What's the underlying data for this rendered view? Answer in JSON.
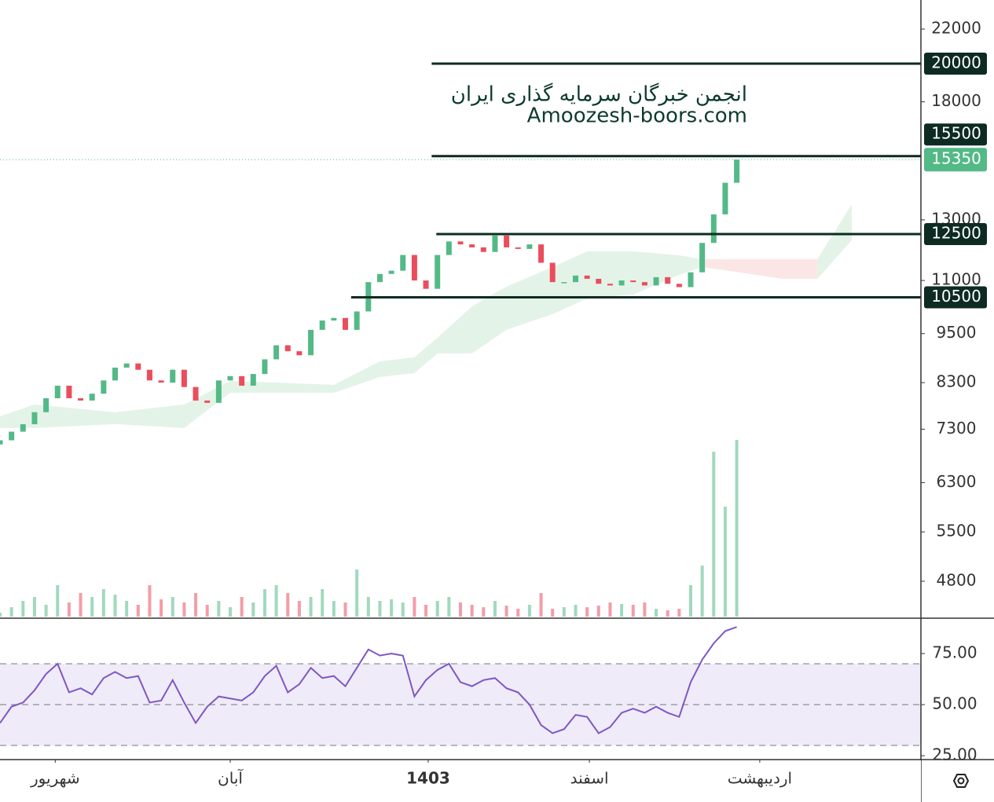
{
  "chart_data": {
    "type": "candlestick",
    "log_scale": true,
    "xlim": [
      0,
      80
    ],
    "ylim": [
      4354,
      23835
    ],
    "yticks": [
      22000,
      18000,
      13000,
      11000,
      9500,
      8300,
      7300,
      6300,
      5500,
      4800
    ],
    "xticks": [
      {
        "value": 4.8,
        "label": "شهریور"
      },
      {
        "value": 20,
        "label": "آبان"
      },
      {
        "value": 37.2,
        "label": "1403"
      },
      {
        "value": 51.2,
        "label": "اسفند"
      },
      {
        "value": 66,
        "label": "اردیبهشت"
      }
    ],
    "watermark": [
      "انجمن خبرگان سرمایه گذاری ایران",
      "Amoozesh-boors.com"
    ],
    "up_color": "#53b987",
    "down_color": "#eb4d5c",
    "series": [
      {
        "open": [
          7000,
          7080,
          7250,
          7400,
          7650,
          7950,
          8230,
          7950,
          7900,
          8050,
          8350,
          8650,
          8750,
          8600,
          8350,
          8300,
          8600,
          8200,
          7900,
          7850,
          8350,
          8450,
          8230,
          8500,
          8850,
          9200,
          9050,
          8950,
          9600,
          9850,
          9920,
          9600,
          10100,
          10950,
          11200,
          11300,
          11800,
          11000,
          10750,
          11800,
          12250,
          12150,
          12050,
          11900,
          12450,
          12050,
          12000,
          12150,
          11550,
          10950,
          10950,
          11150,
          11050,
          10900,
          10850,
          11000,
          10950,
          10850,
          11100,
          10900,
          10800,
          11250,
          12200,
          13200,
          14400
        ],
        "close": [
          7080,
          7250,
          7400,
          7650,
          7950,
          8230,
          7950,
          7900,
          8050,
          8350,
          8650,
          8750,
          8600,
          8350,
          8300,
          8600,
          8200,
          7900,
          7850,
          8350,
          8450,
          8230,
          8500,
          8850,
          9200,
          9050,
          8950,
          9600,
          9850,
          9920,
          9600,
          10100,
          10950,
          11200,
          11300,
          11800,
          11000,
          10750,
          11800,
          12250,
          12150,
          12050,
          11900,
          12450,
          12050,
          12000,
          12150,
          11550,
          10950,
          10950,
          11150,
          11050,
          10900,
          10850,
          11000,
          10950,
          10850,
          11100,
          10900,
          10800,
          11250,
          12200,
          13200,
          14400,
          15350
        ],
        "volume": [
          5,
          12,
          20,
          25,
          15,
          40,
          18,
          30,
          25,
          35,
          28,
          20,
          15,
          40,
          22,
          25,
          18,
          30,
          15,
          20,
          12,
          25,
          18,
          35,
          40,
          30,
          20,
          25,
          35,
          20,
          18,
          60,
          25,
          20,
          22,
          18,
          25,
          15,
          20,
          25,
          18,
          15,
          12,
          20,
          14,
          10,
          15,
          30,
          10,
          12,
          15,
          12,
          14,
          18,
          16,
          15,
          18,
          10,
          8,
          10,
          40,
          65,
          210,
          140,
          225
        ]
      }
    ],
    "volume_ylim": [
      0,
      250
    ],
    "clouds": [
      {
        "color": "#e4f3e8",
        "x": [
          0,
          3,
          10,
          16,
          20,
          29,
          33,
          36,
          38,
          41,
          44,
          48,
          51,
          55,
          59,
          61
        ],
        "upper": [
          7563,
          7815,
          7647,
          7815,
          8339,
          8250,
          8802,
          8899,
          9394,
          10243,
          10815,
          11416,
          11919,
          11919,
          11792,
          11664
        ],
        "lower": [
          7323,
          7323,
          7403,
          7323,
          8071,
          8071,
          8428,
          8521,
          8998,
          8998,
          9601,
          10025,
          10466,
          10582,
          11169,
          11416
        ]
      },
      {
        "color": "#fbe6e6",
        "x": [
          61,
          68,
          71
        ],
        "upper": [
          11664,
          11664,
          11664
        ],
        "lower": [
          11416,
          11050,
          11050
        ]
      },
      {
        "color": "#e4f3e8",
        "x": [
          71,
          74
        ],
        "upper": [
          11664,
          13574
        ],
        "lower": [
          11050,
          12300
        ]
      }
    ],
    "levels": [
      {
        "value": 20000,
        "from": 37.5
      },
      {
        "value": 15500,
        "from": 37.5
      },
      {
        "value": 12500,
        "from": 37.9
      },
      {
        "value": 10500,
        "from": 30.5
      }
    ],
    "last_price": 15350,
    "rsi": {
      "ylim": [
        23.1,
        92.3
      ],
      "yticks": [
        {
          "value": 75,
          "label": "75.00"
        },
        {
          "value": 50,
          "label": "50.00"
        },
        {
          "value": 25,
          "label": "25.00"
        }
      ],
      "bands": [
        70,
        50,
        30
      ],
      "color": "#7e57c2",
      "values": [
        41,
        49,
        51,
        57,
        65,
        70,
        56,
        58,
        55,
        63,
        66,
        63,
        64,
        51,
        52,
        62,
        51,
        41,
        49,
        54,
        53,
        52,
        56,
        64,
        69,
        56,
        60,
        68,
        63,
        64,
        59,
        68,
        77,
        74,
        75,
        74,
        54,
        62,
        67,
        70,
        61,
        59,
        62,
        63,
        58,
        56,
        50,
        40,
        36,
        38,
        45,
        44,
        36,
        39,
        46,
        48,
        46,
        49,
        46,
        44,
        61,
        72,
        80,
        86,
        88
      ]
    }
  }
}
